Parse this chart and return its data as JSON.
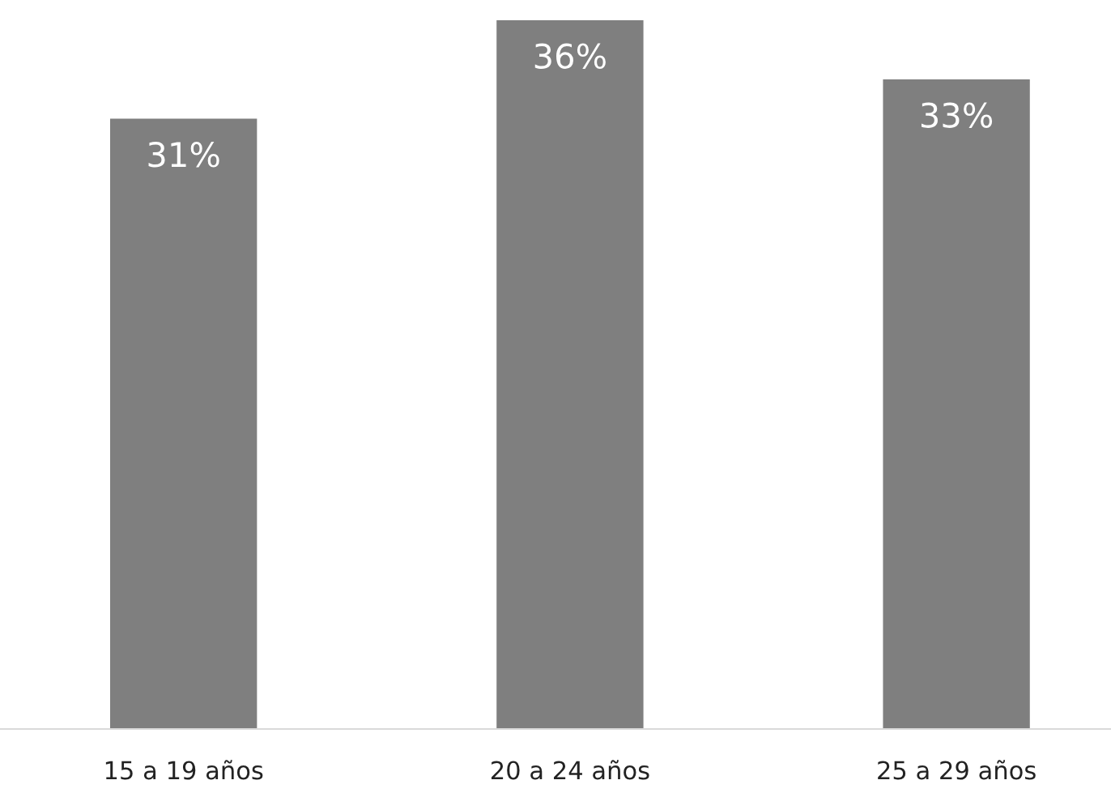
{
  "chart_data": {
    "type": "bar",
    "categories": [
      "15 a 19 años",
      "20 a 24 años",
      "25 a 29 años"
    ],
    "values": [
      31,
      36,
      33
    ],
    "value_labels": [
      "31%",
      "36%",
      "33%"
    ],
    "color": "#7f7f7f",
    "grid": false,
    "legend": false
  }
}
